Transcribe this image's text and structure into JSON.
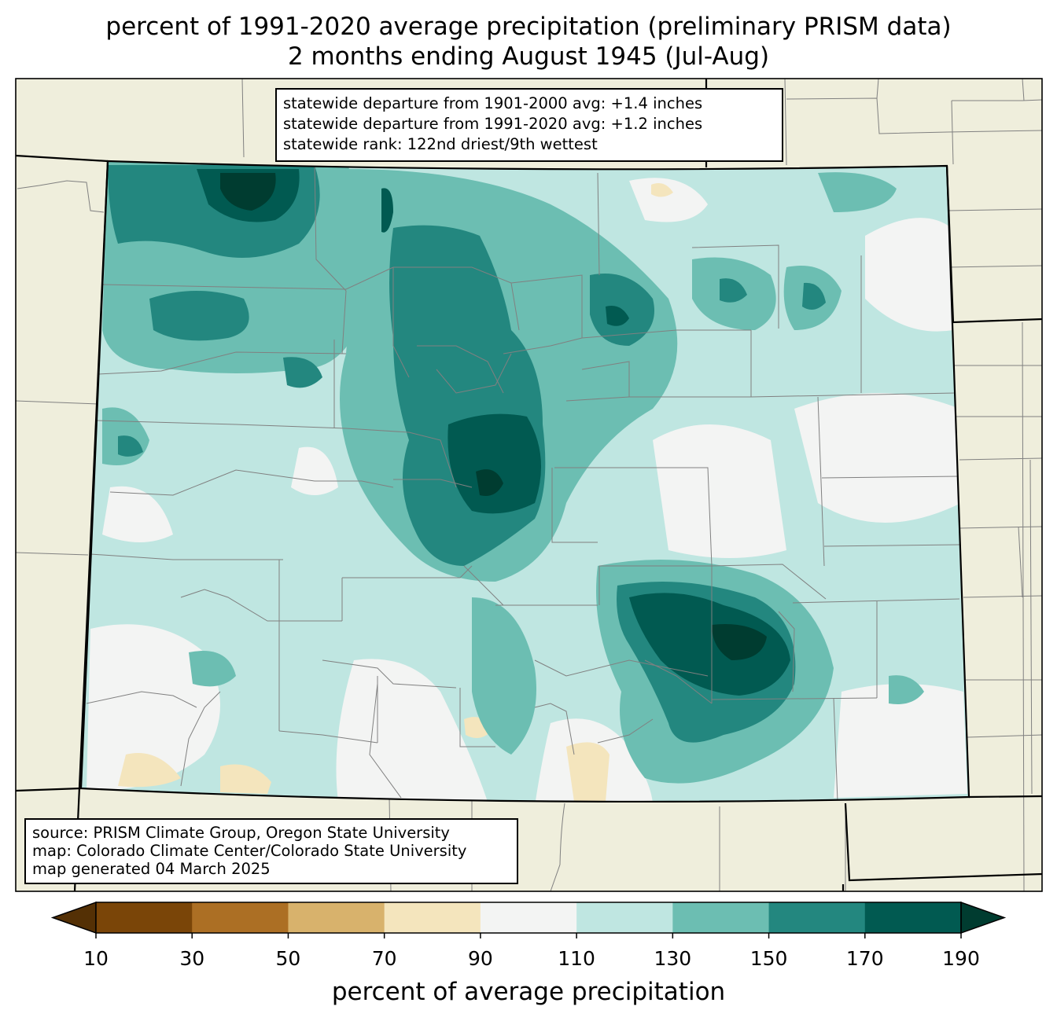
{
  "title": {
    "line1": "percent of 1991-2020 average precipitation (preliminary PRISM data)",
    "line2": "2 months ending August 1945 (Jul-Aug)"
  },
  "stats": {
    "line1": "statewide departure from 1901-2000 avg: +1.4 inches",
    "line2": "statewide departure from 1991-2020 avg: +1.2 inches",
    "line3": "statewide rank: 122nd driest/9th wettest"
  },
  "source": {
    "line1": "source: PRISM Climate Group, Oregon State University",
    "line2": "map: Colorado Climate Center/Colorado State University",
    "line3": "map generated 04 March 2025"
  },
  "colorbar": {
    "label": "percent of average precipitation",
    "ticks": [
      "10",
      "30",
      "50",
      "70",
      "90",
      "110",
      "130",
      "150",
      "170",
      "190"
    ],
    "bins": [
      {
        "range": "<10",
        "color": "#543005"
      },
      {
        "range": "10-30",
        "color": "#7a4508"
      },
      {
        "range": "30-50",
        "color": "#ac6f24"
      },
      {
        "range": "50-70",
        "color": "#d8b26c"
      },
      {
        "range": "70-90",
        "color": "#f4e5bd"
      },
      {
        "range": "90-110",
        "color": "#f3f4f3"
      },
      {
        "range": "110-130",
        "color": "#bfe6e1"
      },
      {
        "range": "130-150",
        "color": "#6cbeb2"
      },
      {
        "range": "150-170",
        "color": "#23877f"
      },
      {
        "range": "170-190",
        "color": "#015a51"
      },
      {
        "range": ">190",
        "color": "#003c30"
      }
    ]
  },
  "map_colors": {
    "land_outside": "#efeedc",
    "county_lines": "#808080",
    "state_lines": "#000000"
  }
}
